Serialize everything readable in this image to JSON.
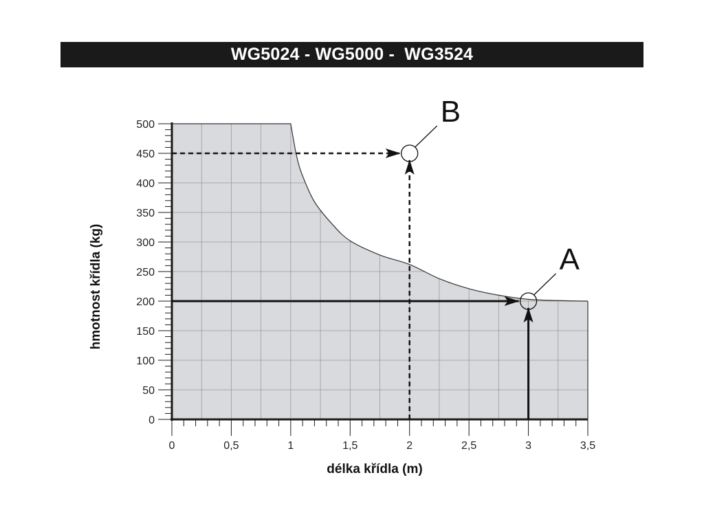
{
  "header": {
    "title": "WG5024 - WG5000 -  WG3524"
  },
  "chart_data": {
    "type": "area",
    "xlabel": "délka křídla (m)",
    "ylabel": "hmotnost křídla (kg)",
    "xlim": [
      0,
      3.5
    ],
    "ylim": [
      0,
      500
    ],
    "x_ticks": [
      "0",
      "0,5",
      "1",
      "1,5",
      "2",
      "2,5",
      "3",
      "3,5"
    ],
    "y_ticks": [
      "0",
      "50",
      "100",
      "150",
      "200",
      "250",
      "300",
      "350",
      "400",
      "450",
      "500"
    ],
    "grid": true,
    "series": [
      {
        "x": [
          0,
          1.0,
          1.05,
          1.1,
          1.2,
          1.35,
          1.5,
          1.75,
          2.0,
          2.25,
          2.5,
          2.75,
          3.0,
          3.25,
          3.5
        ],
        "y": [
          500,
          500,
          445,
          412,
          368,
          330,
          302,
          278,
          262,
          238,
          221,
          210,
          203,
          201,
          200
        ]
      }
    ],
    "markers": [
      {
        "label": "A",
        "x": 3,
        "y": 200
      },
      {
        "label": "B",
        "x": 2,
        "y": 450
      }
    ],
    "colors": {
      "fill": "#d9dadd",
      "grid": "#9a9a9a",
      "axis": "#1a1a1a",
      "curve": "#333333"
    }
  }
}
